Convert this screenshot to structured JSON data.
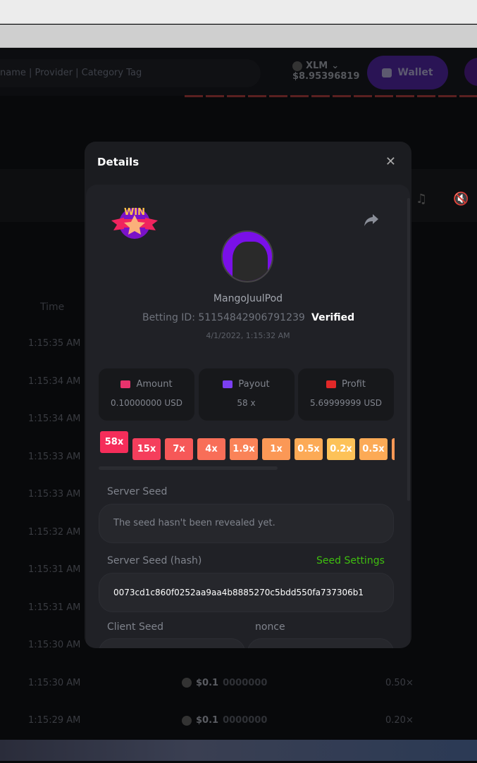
{
  "header": {
    "search_placeholder": "name | Provider | Category Tag",
    "currency": "XLM",
    "balance": "$8.95396819",
    "wallet_label": "Wallet"
  },
  "table": {
    "time_header": "Time",
    "rows": [
      {
        "time": "1:15:35 AM"
      },
      {
        "time": "1:15:34 AM"
      },
      {
        "time": "1:15:34 AM"
      },
      {
        "time": "1:15:33 AM"
      },
      {
        "time": "1:15:33 AM"
      },
      {
        "time": "1:15:32 AM"
      },
      {
        "time": "1:15:31 AM"
      },
      {
        "time": "1:15:31 AM"
      },
      {
        "time": "1:15:30 AM"
      },
      {
        "time": "1:15:30 AM",
        "amount_bright": "$0.1",
        "amount_dim": "0000000",
        "payout": "0.50×"
      },
      {
        "time": "1:15:29 AM",
        "amount_bright": "$0.1",
        "amount_dim": "0000000",
        "payout": "0.20×"
      }
    ]
  },
  "modal": {
    "title": "Details",
    "username": "MangoJuulPod",
    "betting_id": "Betting ID: 51154842906791239",
    "verified": "Verified",
    "date": "4/1/2022, 1:15:32 AM",
    "stats": [
      {
        "label": "Amount",
        "value": "0.10000000 USD",
        "icon": "hand-coins-icon",
        "color": "#e8336d"
      },
      {
        "label": "Payout",
        "value": "58 x",
        "icon": "card-icon",
        "color": "#7b3ff2"
      },
      {
        "label": "Profit",
        "value": "5.69999999 USD",
        "icon": "profit-hand-icon",
        "color": "#e12828"
      }
    ],
    "multipliers": [
      {
        "label": "58x",
        "color": "#f52d5a"
      },
      {
        "label": "15x",
        "color": "#f53e5c"
      },
      {
        "label": "7x",
        "color": "#f65858"
      },
      {
        "label": "4x",
        "color": "#f86e58"
      },
      {
        "label": "1.9x",
        "color": "#fa8358"
      },
      {
        "label": "1x",
        "color": "#fb9856"
      },
      {
        "label": "0.5x",
        "color": "#fcaa56"
      },
      {
        "label": "0.2x",
        "color": "#fdc258"
      },
      {
        "label": "0.5x",
        "color": "#fcaa56"
      },
      {
        "label": "",
        "color": "#fb9856"
      }
    ],
    "server_seed_label": "Server Seed",
    "server_seed_value": "The seed hasn't been revealed yet.",
    "hash_label": "Server Seed (hash)",
    "seed_settings": "Seed Settings",
    "hash_value": "0073cd1c860f0252aa9aa4b8885270c5bdd550fa737306b1",
    "client_seed_label": "Client Seed",
    "nonce_label": "nonce"
  }
}
